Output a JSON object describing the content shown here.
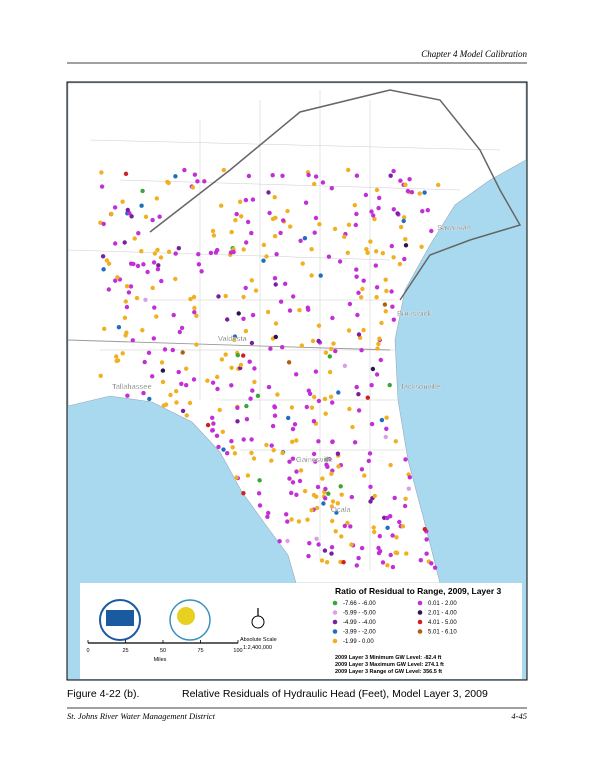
{
  "header": {
    "chapter": "Chapter 4 Model Calibration"
  },
  "map": {
    "places": [
      "Savannah",
      "Brunswick",
      "Valdosta",
      "Jacksonville",
      "Tallahassee",
      "Gainesville",
      "Ocala"
    ]
  },
  "legend": {
    "title": "Ratio of Residual to Range, 2009, Layer 3",
    "items": [
      {
        "label": "-7.66 - -6.00",
        "color": "#3aa63a"
      },
      {
        "label": "-5.99 - -5.00",
        "color": "#d9a0e8"
      },
      {
        "label": "-4.99 - -4.00",
        "color": "#7a1fa0"
      },
      {
        "label": "-3.99 - -2.00",
        "color": "#1f6fc0"
      },
      {
        "label": "-1.99 - 0.00",
        "color": "#f0b020"
      },
      {
        "label": "0.01 - 2.00",
        "color": "#c22fd6"
      },
      {
        "label": "2.01 - 4.00",
        "color": "#2a1550"
      },
      {
        "label": "4.01 - 5.00",
        "color": "#d02020"
      },
      {
        "label": "5.01 - 6.10",
        "color": "#b06010"
      }
    ]
  },
  "scale_bar": {
    "ticks": [
      "0",
      "25",
      "50",
      "75",
      "100"
    ],
    "unit": "Miles",
    "scale_title": "Absolute Scale",
    "scale_ratio": "1:2,400,000"
  },
  "stats": [
    "2009 Layer 3 Minimum GW Level: -82.4  ft",
    "2009 Layer 3 Maximum GW Level: 274.1  ft",
    "2009 Layer 3 Range of GW Level: 356.5  ft"
  ],
  "caption": {
    "number": "Figure 4-22 (b).",
    "text": "Relative Residuals of Hydraulic Head (Feet), Model Layer 3, 2009"
  },
  "footer": {
    "left": "St. Johns River Water Management District",
    "right": "4-45"
  }
}
